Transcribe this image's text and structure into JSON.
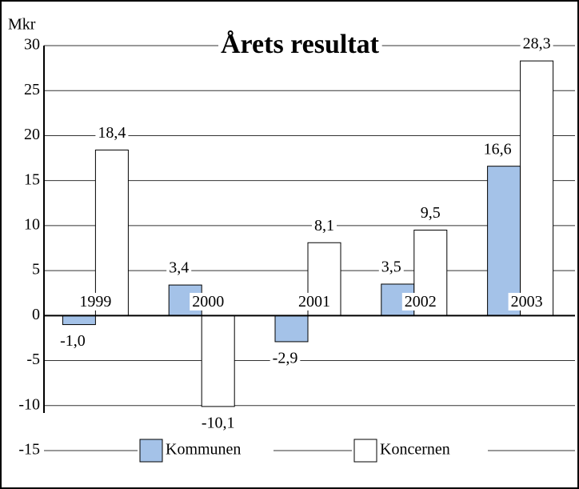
{
  "chart_data": {
    "type": "bar",
    "title": "Årets resultat",
    "y_label": "Mkr",
    "categories": [
      "1999",
      "2000",
      "2001",
      "2002",
      "2003"
    ],
    "series": [
      {
        "name": "Kommunen",
        "color": "#a4c2e8",
        "values": [
          -1.0,
          3.4,
          -2.9,
          3.5,
          16.6
        ],
        "value_labels": [
          "-1,0",
          "3,4",
          "-2,9",
          "3,5",
          "16,6"
        ]
      },
      {
        "name": "Koncernen",
        "color": "#ffffff",
        "values": [
          18.4,
          -10.1,
          8.1,
          9.5,
          28.3
        ],
        "value_labels": [
          "18,4",
          "-10,1",
          "8,1",
          "9,5",
          "28,3"
        ]
      }
    ],
    "ylim": [
      -15,
      30
    ],
    "yticks": [
      30,
      25,
      20,
      15,
      10,
      5,
      0,
      -5,
      -10,
      -15
    ],
    "grid": true,
    "legend": "bottom"
  }
}
